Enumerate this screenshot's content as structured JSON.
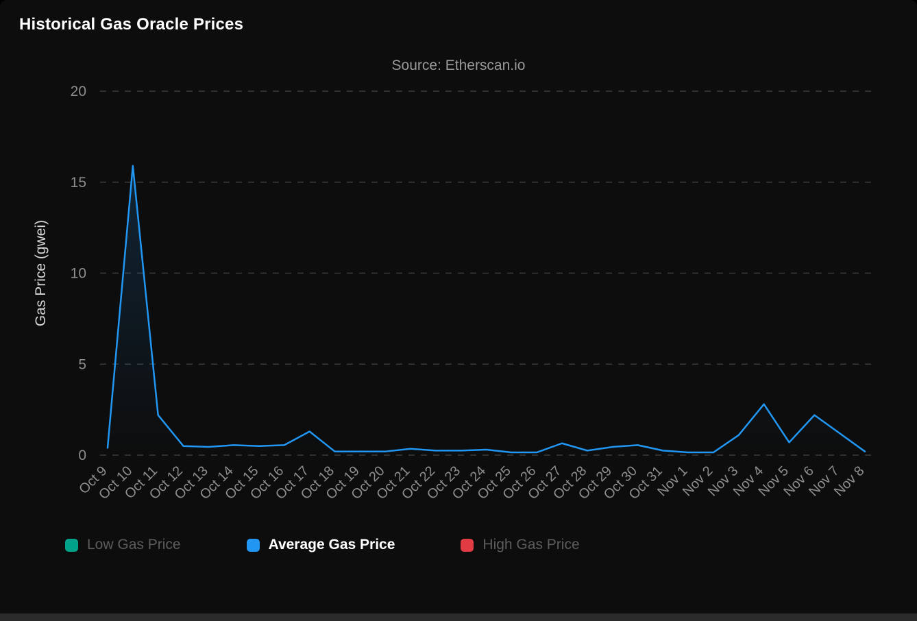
{
  "page": {
    "title": "Historical Gas Oracle Prices",
    "subtitle": "Source: Etherscan.io",
    "background_color": "#0d0d0d",
    "grid_color": "#3c3c3c",
    "axis_label_color": "#8e8e8e",
    "axis_title_color": "#d6d6d6"
  },
  "chart_data": {
    "type": "line",
    "title": "Historical Gas Oracle Prices",
    "subtitle": "Source: Etherscan.io",
    "xlabel": "",
    "ylabel": "Gas Price (gwei)",
    "ylim": [
      0,
      20
    ],
    "yticks": [
      0,
      5,
      10,
      15,
      20
    ],
    "grid": "dashed-horizontal",
    "legend_position": "bottom",
    "categories": [
      "Oct 9",
      "Oct 10",
      "Oct 11",
      "Oct 12",
      "Oct 13",
      "Oct 14",
      "Oct 15",
      "Oct 16",
      "Oct 17",
      "Oct 18",
      "Oct 19",
      "Oct 20",
      "Oct 21",
      "Oct 22",
      "Oct 23",
      "Oct 24",
      "Oct 25",
      "Oct 26",
      "Oct 27",
      "Oct 28",
      "Oct 29",
      "Oct 30",
      "Oct 31",
      "Nov 1",
      "Nov 2",
      "Nov 3",
      "Nov 4",
      "Nov 5",
      "Nov 6",
      "Nov 7",
      "Nov 8"
    ],
    "series": [
      {
        "name": "Low Gas Price",
        "color": "#00a28a",
        "visible": false,
        "values": []
      },
      {
        "name": "Average Gas Price",
        "color": "#2196f3",
        "visible": true,
        "values": [
          0.4,
          15.9,
          2.2,
          0.5,
          0.45,
          0.55,
          0.5,
          0.55,
          1.3,
          0.2,
          0.2,
          0.2,
          0.35,
          0.25,
          0.25,
          0.3,
          0.15,
          0.15,
          0.65,
          0.25,
          0.45,
          0.55,
          0.25,
          0.15,
          0.15,
          1.1,
          2.8,
          0.7,
          2.2,
          1.2,
          0.2
        ]
      },
      {
        "name": "High Gas Price",
        "color": "#e23b43",
        "visible": false,
        "values": []
      }
    ]
  }
}
